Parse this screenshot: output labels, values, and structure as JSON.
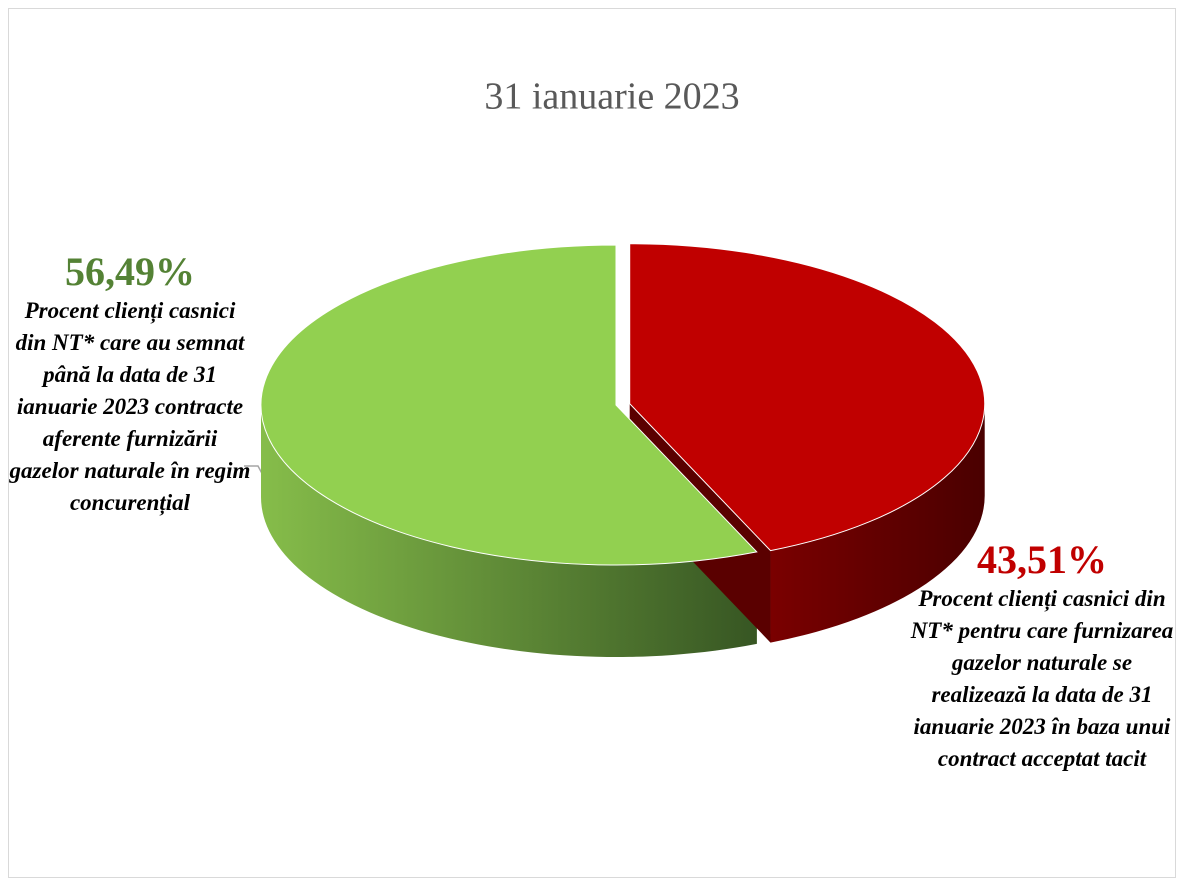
{
  "chart_data": {
    "type": "pie",
    "title": "31 ianuarie 2023",
    "categories": [
      "Procent clienți casnici din NT* care au semnat până la data de 31 ianuarie 2023 contracte aferente furnizării gazelor naturale în regim concurențial",
      "Procent clienți casnici din NT* pentru care furnizarea gazelor naturale se realizează la data de 31 ianuarie 2023 în baza unui contract acceptat tacit"
    ],
    "values": [
      56.49,
      43.51
    ],
    "value_labels": [
      "56,49%",
      "43,51%"
    ],
    "colors": [
      "#92d050",
      "#c00000"
    ],
    "label_colors": [
      "#548235",
      "#c00000"
    ]
  }
}
